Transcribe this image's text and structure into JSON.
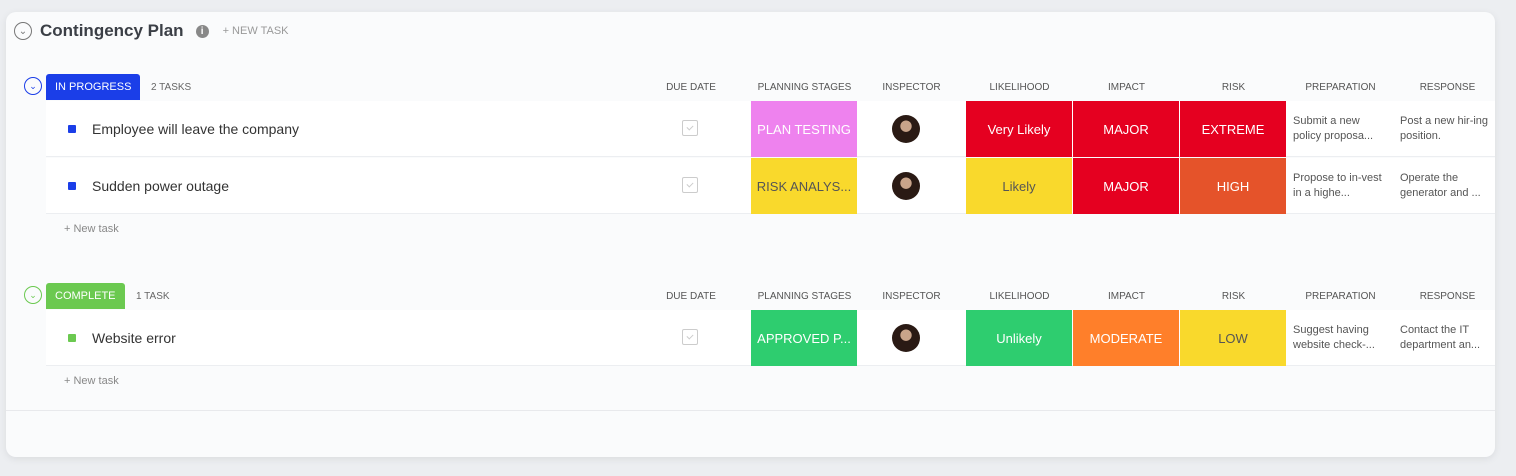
{
  "header": {
    "title": "Contingency Plan",
    "new_task": "+ NEW TASK",
    "info_icon": "info-icon"
  },
  "columns": [
    "DUE DATE",
    "PLANNING STAGES",
    "INSPECTOR",
    "LIKELIHOOD",
    "IMPACT",
    "RISK",
    "PREPARATION",
    "RESPONSE"
  ],
  "groups": [
    {
      "status": "IN PROGRESS",
      "color": "#1b3ee8",
      "count": "2 TASKS",
      "new_task": "+ New task",
      "tasks": [
        {
          "name": "Employee will leave the company",
          "stage": "PLAN TESTING",
          "stage_color": "#ee82ee",
          "likelihood": "Very Likely",
          "likelihood_color": "#e50020",
          "impact": "MAJOR",
          "impact_color": "#e50020",
          "risk": "EXTREME",
          "risk_color": "#e50020",
          "preparation": "Submit a new policy proposa...",
          "response": "Post a new hir-ing position."
        },
        {
          "name": "Sudden power outage",
          "stage": "RISK ANALYS...",
          "stage_color": "#f9d92c",
          "likelihood": "Likely",
          "likelihood_color": "#f9d92c",
          "impact": "MAJOR",
          "impact_color": "#e50020",
          "risk": "HIGH",
          "risk_color": "#e5532a",
          "preparation": "Propose to in-vest in a highe...",
          "response": "Operate the generator and ..."
        }
      ]
    },
    {
      "status": "COMPLETE",
      "color": "#6bc950",
      "count": "1 TASK",
      "new_task": "+ New task",
      "tasks": [
        {
          "name": "Website error",
          "stage": "APPROVED P...",
          "stage_color": "#2ecd6f",
          "likelihood": "Unlikely",
          "likelihood_color": "#2ecd6f",
          "impact": "MODERATE",
          "impact_color": "#ff7f2a",
          "risk": "LOW",
          "risk_color": "#f9d92c",
          "preparation": "Suggest having website check-...",
          "response": "Contact the IT department an..."
        }
      ]
    }
  ]
}
